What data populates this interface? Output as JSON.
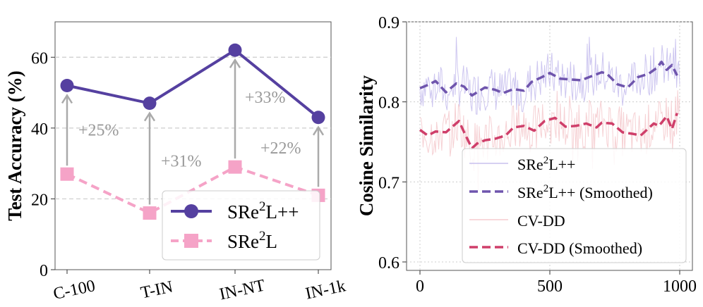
{
  "colors": {
    "purple": "#5540a0",
    "pink": "#f5a3c7",
    "arrow": "#aaaaaa",
    "delta_text": "#999999",
    "light_purple": "#c8c0ee",
    "light_pink": "#f5cccf",
    "smoothed_pink": "#cf3f6a",
    "smoothed_purple": "#6f55ad",
    "grid": "#cccccc"
  },
  "chart_data": [
    {
      "type": "line",
      "categories": [
        "C-100",
        "T-IN",
        "IN-NT",
        "IN-1k"
      ],
      "ylabel": "Test Accuracy (%)",
      "ylim": [
        0,
        70
      ],
      "yticks": [
        "0",
        "20",
        "40",
        "60"
      ],
      "grid": "horizontal dashed",
      "series": [
        {
          "name": "SRe²L++",
          "values": [
            52,
            47,
            62,
            43
          ],
          "color": "#5540a0",
          "marker": "circle",
          "line": "solid"
        },
        {
          "name": "SRe²L",
          "values": [
            27,
            16,
            29,
            21
          ],
          "color": "#f5a3c7",
          "marker": "square",
          "line": "dashed"
        }
      ],
      "annotations": [
        "+25%",
        "+31%",
        "+33%",
        "+22%"
      ],
      "legend": {
        "position": "lower-right",
        "entries": [
          {
            "label": "SRe²L++",
            "base": "SRe",
            "sup": "2",
            "tail": "L++"
          },
          {
            "label": "SRe²L",
            "base": "SRe",
            "sup": "2",
            "tail": "L"
          }
        ]
      }
    },
    {
      "type": "line",
      "ylabel": "Cosine Similarity",
      "xlim": [
        0,
        1000
      ],
      "ylim": [
        0.6,
        0.9
      ],
      "xticks": [
        "0",
        "500",
        "1000"
      ],
      "yticks": [
        "0.6",
        "0.7",
        "0.8",
        "0.9"
      ],
      "grid": "dotted",
      "series": [
        {
          "name": "SRe²L++",
          "kind": "raw",
          "mean": 0.826,
          "spread": 0.022,
          "color": "#c8c0ee"
        },
        {
          "name": "SRe²L++ (Smoothed)",
          "kind": "smoothed",
          "color": "#6f55ad",
          "x": [
            0,
            30,
            60,
            100,
            140,
            170,
            200,
            220,
            250,
            290,
            320,
            360,
            400,
            430,
            470,
            500,
            540,
            580,
            620,
            660,
            700,
            720,
            760,
            800,
            840,
            880,
            910,
            930,
            950,
            970,
            990
          ],
          "y": [
            0.817,
            0.821,
            0.826,
            0.812,
            0.823,
            0.819,
            0.808,
            0.812,
            0.818,
            0.815,
            0.811,
            0.816,
            0.814,
            0.825,
            0.831,
            0.836,
            0.829,
            0.828,
            0.827,
            0.832,
            0.837,
            0.835,
            0.822,
            0.818,
            0.831,
            0.835,
            0.842,
            0.85,
            0.84,
            0.846,
            0.833
          ]
        },
        {
          "name": "CV-DD",
          "kind": "raw",
          "mean": 0.768,
          "spread": 0.024,
          "color": "#f5cccf"
        },
        {
          "name": "CV-DD (Smoothed)",
          "kind": "smoothed",
          "color": "#cf3f6a",
          "x": [
            0,
            30,
            60,
            100,
            150,
            170,
            200,
            220,
            250,
            290,
            330,
            360,
            400,
            440,
            480,
            520,
            560,
            600,
            640,
            680,
            700,
            740,
            780,
            820,
            850,
            880,
            900,
            920,
            950,
            970,
            990
          ],
          "y": [
            0.765,
            0.758,
            0.763,
            0.762,
            0.776,
            0.762,
            0.742,
            0.748,
            0.752,
            0.754,
            0.758,
            0.768,
            0.77,
            0.764,
            0.776,
            0.78,
            0.769,
            0.77,
            0.773,
            0.768,
            0.774,
            0.773,
            0.762,
            0.76,
            0.758,
            0.767,
            0.773,
            0.77,
            0.782,
            0.766,
            0.786
          ]
        }
      ],
      "legend": {
        "position": "lower-right",
        "entries": [
          {
            "label": "SRe²L++",
            "base": "SRe",
            "sup": "2",
            "tail": "L++"
          },
          {
            "label": "SRe²L++ (Smoothed)",
            "base": "SRe",
            "sup": "2",
            "tail": "L++ (Smoothed)"
          },
          {
            "label": "CV-DD",
            "base": "CV-DD",
            "sup": "",
            "tail": ""
          },
          {
            "label": "CV-DD (Smoothed)",
            "base": "CV-DD (Smoothed)",
            "sup": "",
            "tail": ""
          }
        ]
      }
    }
  ]
}
